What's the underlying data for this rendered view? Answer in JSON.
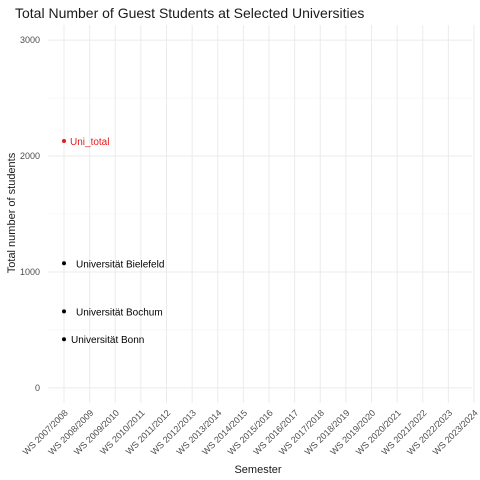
{
  "chart_data": {
    "type": "scatter",
    "title": "Total Number of Guest Students at Selected Universities",
    "xlabel": "Semester",
    "ylabel": "Total number of students",
    "categories": [
      "WS 2007/2008",
      "WS 2008/2009",
      "WS 2009/2010",
      "WS 2010/2011",
      "WS 2011/2012",
      "WS 2012/2013",
      "WS 2013/2014",
      "WS 2014/2015",
      "WS 2015/2016",
      "WS 2016/2017",
      "WS 2017/2018",
      "WS 2018/2019",
      "WS 2019/2020",
      "WS 2020/2021",
      "WS 2021/2022",
      "WS 2022/2023",
      "WS 2023/2024"
    ],
    "ylim": [
      -130,
      3130
    ],
    "yticks": [
      0,
      1000,
      2000,
      3000
    ],
    "grid": true,
    "series": [
      {
        "name": "Uni_total",
        "x": "WS 2007/2008",
        "y": 2130,
        "color": "#e41a1c"
      },
      {
        "name": "Universität Bielefeld",
        "x": "WS 2007/2008",
        "y": 1075,
        "color": "#000000"
      },
      {
        "name": "Universität Bochum",
        "x": "WS 2007/2008",
        "y": 660,
        "color": "#000000"
      },
      {
        "name": "Universität Bonn",
        "x": "WS 2007/2008",
        "y": 420,
        "color": "#000000"
      }
    ]
  }
}
